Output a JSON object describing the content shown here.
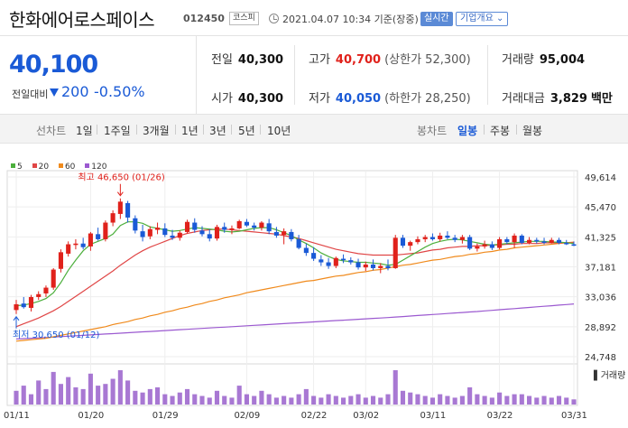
{
  "header": {
    "stock_name": "한화에어로스페이스",
    "stock_code": "012450",
    "market": "코스피",
    "datetime": "2021.04.07 10:34 기준(장중)",
    "realtime": "실시간",
    "company_info": "기업개요 ⌄",
    "icons": {
      "clock": "clock-icon"
    }
  },
  "price": {
    "current": "40,100",
    "change_label": "전일대비",
    "change_value": "200",
    "change_pct": "-0.50%",
    "direction": "down",
    "color": "#1a5ad6"
  },
  "stats": {
    "prev_close_label": "전일",
    "prev_close": "40,300",
    "open_label": "시가",
    "open": "40,300",
    "high_label": "고가",
    "high": "40,700",
    "upper_limit": "(상한가 52,300)",
    "low_label": "저가",
    "low": "40,050",
    "lower_limit": "(하한가 28,250)",
    "volume_label": "거래량",
    "volume": "95,004",
    "amount_label": "거래대금",
    "amount": "3,829",
    "amount_unit": "백만"
  },
  "toolbar": {
    "line_chart_label": "선차트",
    "line_periods": [
      "1일",
      "1주일",
      "3개월",
      "1년",
      "3년",
      "5년",
      "10년"
    ],
    "candle_label": "봉차트",
    "candle_periods": [
      "일봉",
      "주봉",
      "월봉"
    ],
    "active_candle": "일봉"
  },
  "legend": [
    {
      "label": "5",
      "color": "#4caf3c"
    },
    {
      "label": "20",
      "color": "#e04646"
    },
    {
      "label": "60",
      "color": "#f08a1c"
    },
    {
      "label": "120",
      "color": "#9b59d0"
    }
  ],
  "annotations": {
    "high": "최고 46,650 (01/26)",
    "low": "최저 30,650 (01/12)"
  },
  "volume_label": "거래량",
  "chart_data": {
    "type": "candlestick",
    "y_ticks": [
      49614,
      45470,
      41325,
      37181,
      33036,
      28892,
      24748
    ],
    "ylim": [
      24748,
      49614
    ],
    "x_ticks": [
      "01/11",
      "01/20",
      "01/29",
      "02/09",
      "02/22",
      "03/02",
      "03/11",
      "03/22",
      "03/31"
    ],
    "up_color": "#e0211b",
    "down_color": "#1a5ad6",
    "candles": [
      {
        "o": 31200,
        "h": 32600,
        "l": 30650,
        "c": 32000
      },
      {
        "o": 32100,
        "h": 33000,
        "l": 31400,
        "c": 31600
      },
      {
        "o": 31500,
        "h": 33300,
        "l": 31000,
        "c": 33000
      },
      {
        "o": 33000,
        "h": 33800,
        "l": 32600,
        "c": 33400
      },
      {
        "o": 33500,
        "h": 34600,
        "l": 33000,
        "c": 34300
      },
      {
        "o": 34300,
        "h": 37000,
        "l": 34000,
        "c": 36800
      },
      {
        "o": 36900,
        "h": 39600,
        "l": 36400,
        "c": 39200
      },
      {
        "o": 39000,
        "h": 40700,
        "l": 38600,
        "c": 40300
      },
      {
        "o": 40200,
        "h": 41000,
        "l": 39600,
        "c": 40400
      },
      {
        "o": 40400,
        "h": 41200,
        "l": 39600,
        "c": 39900
      },
      {
        "o": 40000,
        "h": 42000,
        "l": 39400,
        "c": 41800
      },
      {
        "o": 41700,
        "h": 42600,
        "l": 40800,
        "c": 41000
      },
      {
        "o": 41000,
        "h": 43600,
        "l": 40700,
        "c": 43300
      },
      {
        "o": 43300,
        "h": 45000,
        "l": 42800,
        "c": 44600
      },
      {
        "o": 44500,
        "h": 46650,
        "l": 43800,
        "c": 46200
      },
      {
        "o": 46000,
        "h": 46300,
        "l": 43300,
        "c": 44000
      },
      {
        "o": 43900,
        "h": 44300,
        "l": 41800,
        "c": 42200
      },
      {
        "o": 42100,
        "h": 43000,
        "l": 40700,
        "c": 41300
      },
      {
        "o": 41400,
        "h": 42800,
        "l": 41000,
        "c": 42400
      },
      {
        "o": 42300,
        "h": 43300,
        "l": 41700,
        "c": 42600
      },
      {
        "o": 42500,
        "h": 43200,
        "l": 41300,
        "c": 41600
      },
      {
        "o": 41500,
        "h": 42300,
        "l": 40900,
        "c": 41200
      },
      {
        "o": 41200,
        "h": 42200,
        "l": 40800,
        "c": 41900
      },
      {
        "o": 42000,
        "h": 43700,
        "l": 41800,
        "c": 43400
      },
      {
        "o": 43300,
        "h": 43900,
        "l": 41900,
        "c": 42300
      },
      {
        "o": 42200,
        "h": 42800,
        "l": 41400,
        "c": 41700
      },
      {
        "o": 41700,
        "h": 42400,
        "l": 40700,
        "c": 41100
      },
      {
        "o": 41100,
        "h": 43000,
        "l": 40800,
        "c": 42700
      },
      {
        "o": 42700,
        "h": 43300,
        "l": 41900,
        "c": 42300
      },
      {
        "o": 42300,
        "h": 42900,
        "l": 41700,
        "c": 42500
      },
      {
        "o": 42500,
        "h": 43700,
        "l": 42400,
        "c": 43500
      },
      {
        "o": 43400,
        "h": 43800,
        "l": 42700,
        "c": 42900
      },
      {
        "o": 42900,
        "h": 43300,
        "l": 42200,
        "c": 42600
      },
      {
        "o": 42600,
        "h": 43500,
        "l": 42200,
        "c": 43300
      },
      {
        "o": 43200,
        "h": 43800,
        "l": 41700,
        "c": 42100
      },
      {
        "o": 42000,
        "h": 42700,
        "l": 41200,
        "c": 41500
      },
      {
        "o": 41600,
        "h": 42500,
        "l": 40300,
        "c": 42100
      },
      {
        "o": 42000,
        "h": 42400,
        "l": 40700,
        "c": 41000
      },
      {
        "o": 41000,
        "h": 41600,
        "l": 39600,
        "c": 39800
      },
      {
        "o": 39800,
        "h": 40400,
        "l": 38700,
        "c": 39100
      },
      {
        "o": 39100,
        "h": 39900,
        "l": 38000,
        "c": 38300
      },
      {
        "o": 38200,
        "h": 38800,
        "l": 37300,
        "c": 37800
      },
      {
        "o": 37800,
        "h": 38400,
        "l": 36900,
        "c": 37300
      },
      {
        "o": 37300,
        "h": 38600,
        "l": 37000,
        "c": 38400
      },
      {
        "o": 38300,
        "h": 38900,
        "l": 37700,
        "c": 38100
      },
      {
        "o": 38100,
        "h": 38500,
        "l": 37500,
        "c": 37800
      },
      {
        "o": 37800,
        "h": 38300,
        "l": 36800,
        "c": 37100
      },
      {
        "o": 37100,
        "h": 37900,
        "l": 36600,
        "c": 37500
      },
      {
        "o": 37500,
        "h": 38200,
        "l": 36700,
        "c": 37000
      },
      {
        "o": 37000,
        "h": 37700,
        "l": 36300,
        "c": 37300
      },
      {
        "o": 37300,
        "h": 38200,
        "l": 36700,
        "c": 37000
      },
      {
        "o": 37000,
        "h": 41600,
        "l": 36900,
        "c": 41200
      },
      {
        "o": 41200,
        "h": 41600,
        "l": 39800,
        "c": 40100
      },
      {
        "o": 40100,
        "h": 40800,
        "l": 39400,
        "c": 40600
      },
      {
        "o": 40600,
        "h": 41400,
        "l": 40300,
        "c": 41000
      },
      {
        "o": 41000,
        "h": 41600,
        "l": 40600,
        "c": 41300
      },
      {
        "o": 41300,
        "h": 41800,
        "l": 40800,
        "c": 41000
      },
      {
        "o": 41000,
        "h": 41900,
        "l": 40700,
        "c": 41500
      },
      {
        "o": 41500,
        "h": 42100,
        "l": 41000,
        "c": 41200
      },
      {
        "o": 41200,
        "h": 41600,
        "l": 40600,
        "c": 40900
      },
      {
        "o": 40900,
        "h": 41600,
        "l": 40400,
        "c": 41300
      },
      {
        "o": 41300,
        "h": 41600,
        "l": 39500,
        "c": 39700
      },
      {
        "o": 39700,
        "h": 40400,
        "l": 39300,
        "c": 40000
      },
      {
        "o": 40000,
        "h": 40800,
        "l": 39700,
        "c": 40300
      },
      {
        "o": 40300,
        "h": 40700,
        "l": 39500,
        "c": 39800
      },
      {
        "o": 39800,
        "h": 41300,
        "l": 39600,
        "c": 41000
      },
      {
        "o": 41000,
        "h": 41300,
        "l": 40300,
        "c": 40600
      },
      {
        "o": 40600,
        "h": 41800,
        "l": 39800,
        "c": 41500
      },
      {
        "o": 41500,
        "h": 41700,
        "l": 40300,
        "c": 40500
      },
      {
        "o": 40500,
        "h": 41300,
        "l": 40300,
        "c": 40900
      },
      {
        "o": 40900,
        "h": 41200,
        "l": 40400,
        "c": 40700
      },
      {
        "o": 40700,
        "h": 41200,
        "l": 40300,
        "c": 40500
      },
      {
        "o": 40500,
        "h": 41200,
        "l": 40400,
        "c": 40900
      },
      {
        "o": 40900,
        "h": 41200,
        "l": 40300,
        "c": 40500
      },
      {
        "o": 40500,
        "h": 40900,
        "l": 40200,
        "c": 40300
      },
      {
        "o": 40300,
        "h": 40700,
        "l": 40050,
        "c": 40100
      }
    ],
    "ma5": [
      31800,
      31900,
      32100,
      32400,
      32800,
      33600,
      35000,
      36700,
      38100,
      39400,
      40300,
      40700,
      41100,
      41700,
      42900,
      43400,
      43400,
      43200,
      42700,
      42500,
      42300,
      42100,
      42200,
      42400,
      42600,
      42500,
      42400,
      42300,
      42100,
      42000,
      42100,
      42300,
      42500,
      42600,
      42600,
      42300,
      41900,
      41500,
      40900,
      40400,
      39800,
      39100,
      38600,
      38200,
      38000,
      37900,
      37800,
      37800,
      37700,
      37600,
      37400,
      37500,
      38100,
      38700,
      39300,
      39900,
      40400,
      40700,
      40900,
      41000,
      40900,
      40700,
      40500,
      40300,
      40200,
      40300,
      40400,
      40500,
      40600,
      40700,
      40700,
      40700,
      40600,
      40600,
      40500,
      40400
    ],
    "ma20": [
      28900,
      29300,
      29700,
      30100,
      30600,
      31100,
      31700,
      32400,
      33100,
      33800,
      34500,
      35200,
      35900,
      36600,
      37400,
      38100,
      38800,
      39400,
      39900,
      40300,
      40700,
      41100,
      41500,
      41800,
      42000,
      42200,
      42300,
      42400,
      42400,
      42300,
      42200,
      42100,
      42000,
      41900,
      41800,
      41700,
      41500,
      41300,
      41100,
      40800,
      40500,
      40200,
      39900,
      39600,
      39400,
      39200,
      39000,
      38900,
      38800,
      38800,
      38800,
      38800,
      38900,
      39000,
      39100,
      39300,
      39500,
      39600,
      39800,
      39900,
      40000,
      40000,
      40100,
      40100,
      40200,
      40200,
      40300,
      40300,
      40400,
      40400,
      40400,
      40500,
      40500,
      40500,
      40500,
      40500
    ],
    "ma60": [
      26900,
      27000,
      27100,
      27200,
      27300,
      27500,
      27700,
      27900,
      28100,
      28300,
      28500,
      28700,
      28900,
      29200,
      29400,
      29600,
      29900,
      30100,
      30400,
      30600,
      30900,
      31100,
      31400,
      31600,
      31900,
      32100,
      32400,
      32600,
      32900,
      33100,
      33300,
      33600,
      33800,
      34000,
      34200,
      34400,
      34600,
      34800,
      35000,
      35200,
      35300,
      35500,
      35700,
      35900,
      36000,
      36200,
      36400,
      36500,
      36700,
      36800,
      37000,
      37200,
      37400,
      37500,
      37700,
      37900,
      38100,
      38200,
      38400,
      38600,
      38700,
      38900,
      39000,
      39200,
      39300,
      39500,
      39600,
      39800,
      39900,
      40000,
      40100,
      40200,
      40300,
      40400,
      40500,
      40600
    ],
    "ma120": [
      27200,
      27250,
      27300,
      27350,
      27400,
      27460,
      27520,
      27580,
      27640,
      27700,
      27760,
      27820,
      27880,
      27940,
      28000,
      28060,
      28120,
      28180,
      28240,
      28300,
      28360,
      28420,
      28480,
      28540,
      28600,
      28660,
      28720,
      28780,
      28840,
      28900,
      28960,
      29020,
      29080,
      29140,
      29200,
      29260,
      29320,
      29380,
      29440,
      29500,
      29560,
      29620,
      29680,
      29740,
      29800,
      29860,
      29920,
      29980,
      30040,
      30100,
      30160,
      30230,
      30300,
      30370,
      30440,
      30510,
      30580,
      30650,
      30720,
      30790,
      30860,
      30930,
      31000,
      31080,
      31160,
      31240,
      31320,
      31400,
      31480,
      31560,
      31640,
      31720,
      31800,
      31880,
      31960,
      32040
    ],
    "volume": [
      40,
      55,
      30,
      70,
      45,
      95,
      60,
      80,
      50,
      45,
      90,
      55,
      60,
      75,
      100,
      70,
      40,
      35,
      45,
      50,
      30,
      25,
      35,
      45,
      30,
      25,
      20,
      40,
      25,
      20,
      55,
      30,
      25,
      40,
      30,
      20,
      25,
      20,
      30,
      45,
      25,
      20,
      30,
      25,
      20,
      25,
      30,
      20,
      25,
      20,
      30,
      100,
      40,
      35,
      30,
      25,
      20,
      30,
      25,
      20,
      25,
      50,
      30,
      25,
      20,
      35,
      25,
      30,
      30,
      25,
      20,
      25,
      20,
      25,
      20,
      15
    ]
  }
}
